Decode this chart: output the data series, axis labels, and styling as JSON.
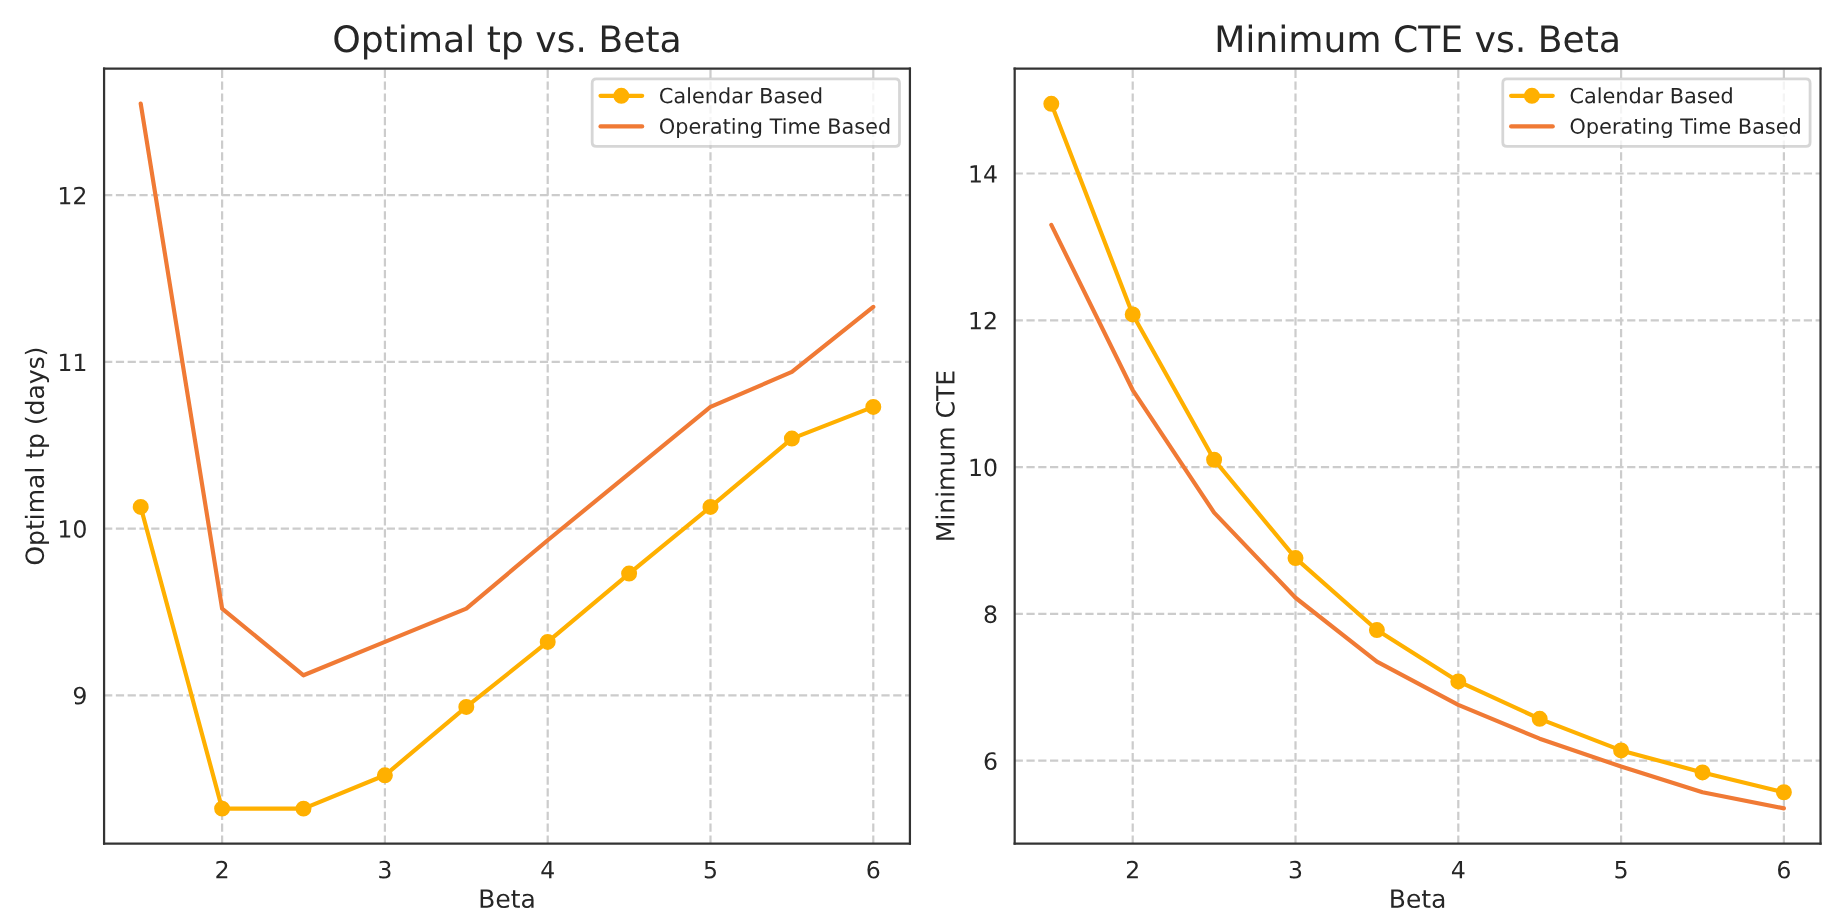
{
  "chart_data": [
    {
      "type": "line",
      "title": "Optimal tp vs. Beta",
      "xlabel": "Beta",
      "ylabel": "Optimal tp (days)",
      "x": [
        1.5,
        2,
        2.5,
        3,
        3.5,
        4,
        4.5,
        5,
        5.5,
        6
      ],
      "series": [
        {
          "name": "Calendar Based",
          "color": "#ffb000",
          "marker": "circle",
          "values": [
            10.13,
            8.32,
            8.32,
            8.52,
            8.93,
            9.32,
            9.73,
            10.13,
            10.54,
            10.73
          ]
        },
        {
          "name": "Operating Time Based",
          "color": "#f07a35",
          "marker": "none",
          "values": [
            12.55,
            9.52,
            9.12,
            9.32,
            9.52,
            9.93,
            10.33,
            10.73,
            10.94,
            11.33
          ]
        }
      ],
      "xlim": [
        1.275,
        6.225
      ],
      "xticks": [
        2,
        3,
        4,
        5,
        6
      ],
      "ylim": [
        8.11,
        12.76
      ],
      "yticks": [
        9,
        10,
        11,
        12
      ],
      "grid": true,
      "legend": "top right",
      "line_style": "solid"
    },
    {
      "type": "line",
      "title": "Minimum CTE vs. Beta",
      "xlabel": "Beta",
      "ylabel": "Minimum CTE",
      "x": [
        1.5,
        2,
        2.5,
        3,
        3.5,
        4,
        4.5,
        5,
        5.5,
        6
      ],
      "series": [
        {
          "name": "Calendar Based",
          "color": "#ffb000",
          "marker": "circle",
          "values": [
            14.95,
            12.08,
            10.1,
            8.76,
            7.78,
            7.08,
            6.57,
            6.14,
            5.84,
            5.57
          ]
        },
        {
          "name": "Operating Time Based",
          "color": "#f07a35",
          "marker": "none",
          "values": [
            13.3,
            11.05,
            9.38,
            8.22,
            7.35,
            6.76,
            6.3,
            5.92,
            5.57,
            5.35
          ]
        }
      ],
      "xlim": [
        1.275,
        6.225
      ],
      "xticks": [
        2,
        3,
        4,
        5,
        6
      ],
      "ylim": [
        4.87,
        15.43
      ],
      "yticks": [
        6,
        8,
        10,
        12,
        14
      ],
      "grid": true,
      "legend": "top right",
      "line_style": "solid"
    }
  ]
}
